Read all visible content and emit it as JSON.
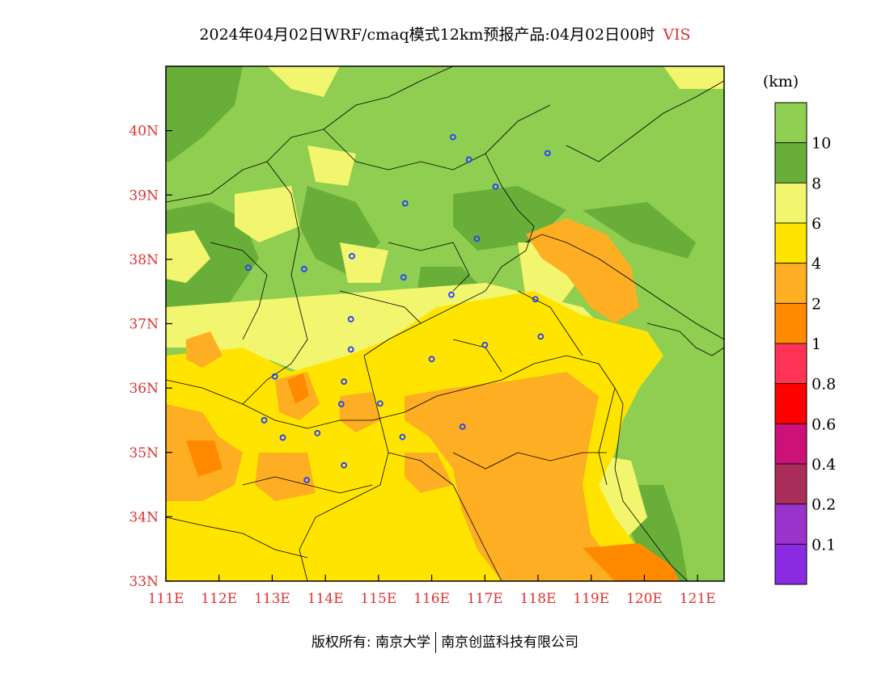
{
  "title": {
    "main": "2024年04月02日WRF/cmaq模式12km预报产品:04月02日00时",
    "variable": "VIS"
  },
  "colors": {
    "gt10": "#8fce50",
    "c8_10": "#6aae3a",
    "c6_8": "#f2f56e",
    "c4_6": "#ffe400",
    "c2_4": "#fdae22",
    "c1_2": "#ff8a00",
    "c08_1": "#ff3355",
    "c06_08": "#ff0000",
    "c04_06": "#cc1177",
    "c02_04": "#aa2e5a",
    "c01_02": "#9933cc",
    "lt01": "#8a2be2",
    "city_marker": "#2040ff"
  },
  "map": {
    "lon_range": [
      111,
      121.5
    ],
    "lat_range": [
      33,
      41
    ],
    "x_ticks": [
      "111E",
      "112E",
      "113E",
      "114E",
      "115E",
      "116E",
      "117E",
      "118E",
      "119E",
      "120E",
      "121E"
    ],
    "y_ticks": [
      "33N",
      "34N",
      "35N",
      "36N",
      "37N",
      "38N",
      "39N",
      "40N"
    ],
    "cities": [
      [
        116.4,
        39.9
      ],
      [
        116.7,
        39.55
      ],
      [
        117.2,
        39.13
      ],
      [
        118.18,
        39.65
      ],
      [
        115.5,
        38.87
      ],
      [
        116.85,
        38.32
      ],
      [
        112.55,
        37.87
      ],
      [
        113.6,
        37.85
      ],
      [
        114.5,
        38.05
      ],
      [
        115.47,
        37.72
      ],
      [
        116.37,
        37.45
      ],
      [
        114.48,
        37.07
      ],
      [
        114.48,
        36.6
      ],
      [
        117.95,
        37.38
      ],
      [
        118.05,
        36.8
      ],
      [
        117.0,
        36.67
      ],
      [
        116.0,
        36.45
      ],
      [
        113.05,
        36.18
      ],
      [
        114.35,
        36.1
      ],
      [
        114.3,
        35.75
      ],
      [
        115.03,
        35.76
      ],
      [
        112.85,
        35.5
      ],
      [
        113.2,
        35.23
      ],
      [
        113.85,
        35.3
      ],
      [
        115.45,
        35.24
      ],
      [
        116.58,
        35.4
      ],
      [
        114.35,
        34.8
      ],
      [
        113.65,
        34.57
      ]
    ]
  },
  "legend": {
    "unit": "(km)",
    "labels": [
      "10",
      "8",
      "6",
      "4",
      "2",
      "1",
      "0.8",
      "0.6",
      "0.4",
      "0.2",
      "0.1"
    ]
  },
  "footer": {
    "copyright": "版权所有: 南京大学",
    "company": "南京创蓝科技有限公司"
  }
}
